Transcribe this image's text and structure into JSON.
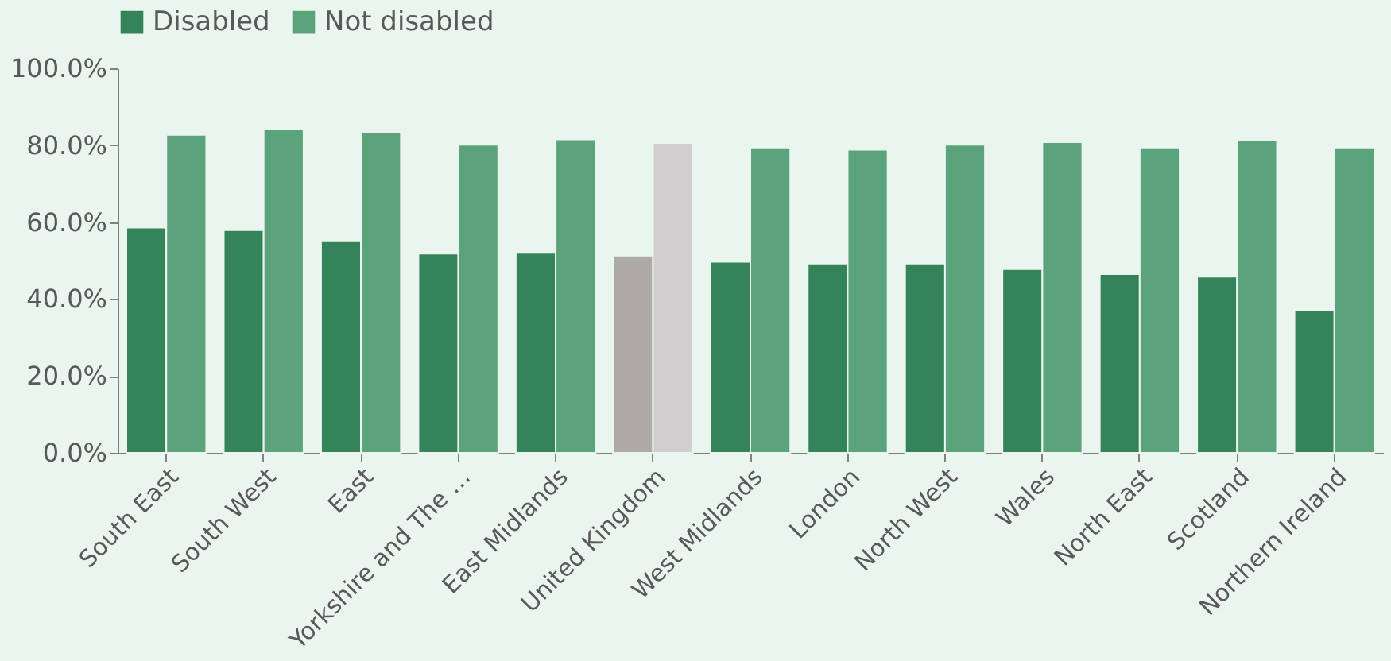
{
  "chart_data": {
    "type": "bar",
    "categories": [
      "South East",
      "South West",
      "East",
      "Yorkshire and The …",
      "East Midlands",
      "United Kingdom",
      "West Midlands",
      "London",
      "North West",
      "Wales",
      "North East",
      "Scotland",
      "Northern Ireland"
    ],
    "series": [
      {
        "name": "Disabled",
        "color": "#358359",
        "colors": [
          "#358359",
          "#358359",
          "#358359",
          "#358359",
          "#358359",
          "#aeaaaa",
          "#358359",
          "#358359",
          "#358359",
          "#358359",
          "#358359",
          "#358359",
          "#358359"
        ],
        "values": [
          58.6,
          57.9,
          55.2,
          51.8,
          52.0,
          51.3,
          49.7,
          49.2,
          49.2,
          47.8,
          46.5,
          45.8,
          37.1
        ]
      },
      {
        "name": "Not disabled",
        "color": "#5ba37b",
        "colors": [
          "#5ba37b",
          "#5ba37b",
          "#5ba37b",
          "#5ba37b",
          "#5ba37b",
          "#d0cece",
          "#5ba37b",
          "#5ba37b",
          "#5ba37b",
          "#5ba37b",
          "#5ba37b",
          "#5ba37b",
          "#5ba37b"
        ],
        "values": [
          82.7,
          84.1,
          83.4,
          80.1,
          81.5,
          80.6,
          79.4,
          78.8,
          80.1,
          80.8,
          79.4,
          81.3,
          79.4
        ]
      }
    ],
    "ylim": [
      0,
      100
    ],
    "yticks": [
      {
        "value": 0,
        "label": "0.0%"
      },
      {
        "value": 20,
        "label": "20.0%"
      },
      {
        "value": 40,
        "label": "40.0%"
      },
      {
        "value": 60,
        "label": "60.0%"
      },
      {
        "value": 80,
        "label": "80.0%"
      },
      {
        "value": 100,
        "label": "100.0%"
      }
    ],
    "grid": false,
    "legend": "top"
  }
}
